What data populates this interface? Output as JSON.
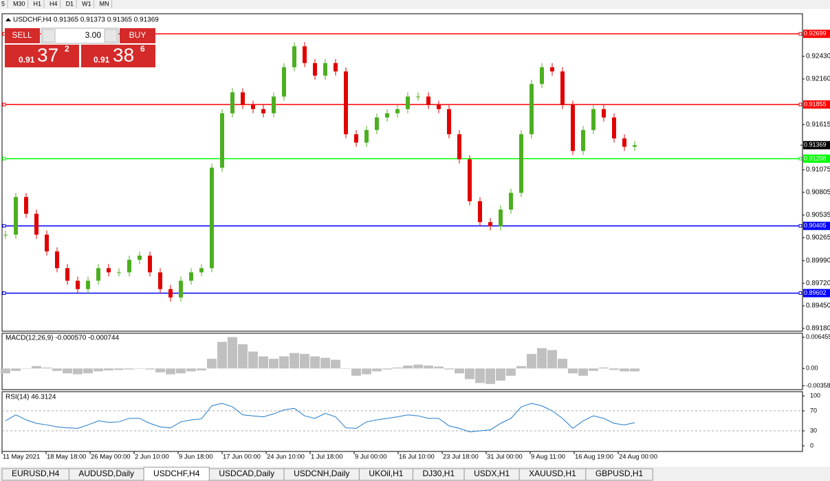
{
  "toolbar": {
    "timeframes": [
      "5",
      "M30",
      "H1",
      "H4",
      "D1",
      "W1",
      "MN"
    ]
  },
  "chart": {
    "header": "USDCHF,H4  0.91365 0.91373 0.91365 0.91369",
    "ylim": [
      0.89147,
      0.92939
    ],
    "yticks": [
      {
        "value": 0.9243,
        "label": "0.92430"
      },
      {
        "value": 0.9216,
        "label": "0.92160"
      },
      0.91615,
      0.91075,
      0.90805,
      0.90535,
      0.90265,
      {
        "value": 0.8999,
        "label": "0.89990"
      },
      {
        "value": 0.8972,
        "label": "0.89720"
      },
      {
        "value": 0.8945,
        "label": "0.89450"
      },
      {
        "value": 0.8918,
        "label": "0.89180"
      }
    ],
    "levels": [
      {
        "value": 0.92699,
        "color": "#ff0000"
      },
      {
        "value": 0.91855,
        "color": "#ff0000"
      },
      {
        "value": 0.91208,
        "color": "#00ff00"
      },
      {
        "value": 0.90405,
        "color": "#0000ff"
      },
      {
        "value": 0.89602,
        "color": "#0000ff"
      }
    ],
    "current_price": 0.91369,
    "up_color": "#4caf20",
    "down_color": "#e00000",
    "closes": [
      0.903,
      0.9075,
      0.9055,
      0.903,
      0.901,
      0.899,
      0.8975,
      0.8965,
      0.8975,
      0.899,
      0.8985,
      0.8985,
      0.9,
      0.9005,
      0.8985,
      0.8965,
      0.8955,
      0.8975,
      0.8985,
      0.899,
      0.911,
      0.9175,
      0.92,
      0.9185,
      0.918,
      0.9175,
      0.9195,
      0.923,
      0.9255,
      0.9235,
      0.922,
      0.9235,
      0.9225,
      0.915,
      0.914,
      0.9155,
      0.917,
      0.9175,
      0.918,
      0.9195,
      0.9195,
      0.9185,
      0.918,
      0.915,
      0.912,
      0.907,
      0.9045,
      0.904,
      0.906,
      0.908,
      0.915,
      0.921,
      0.923,
      0.9225,
      0.9185,
      0.913,
      0.9155,
      0.918,
      0.917,
      0.9145,
      0.9135,
      0.91369
    ],
    "time_labels": [
      "11 May 2021",
      "18 May 18:00",
      "26 May 00:00",
      "2 Jun 10:00",
      "9 Jun 18:00",
      "17 Jun 00:00",
      "24 Jun 10:00",
      "1 Jul 18:00",
      "9 Jul 00:00",
      "16 Jul 10:00",
      "23 Jul 18:00",
      "31 Jul 00:00",
      "9 Aug 11:00",
      "16 Aug 19:00",
      "24 Aug 00:00"
    ]
  },
  "trade_panel": {
    "sell": "SELL",
    "buy": "BUY",
    "volume": "3.00",
    "bid": {
      "prefix": "0.91",
      "big": "37",
      "small": "2"
    },
    "ask": {
      "prefix": "0.91",
      "big": "38",
      "small": "6"
    }
  },
  "macd": {
    "label": "MACD(12,26,9) -0.000570 -0.000744",
    "ylim": [
      -0.00437,
      0.00728
    ],
    "yticks": [
      0.006455,
      {
        "value": 0,
        "label": "0.00"
      },
      -0.003589
    ],
    "color": "#c0c0c0",
    "histogram": [
      -0.001,
      -0.0005,
      0.0,
      0.0005,
      0.0002,
      -0.0005,
      -0.001,
      -0.0012,
      -0.001,
      -0.0006,
      -0.0004,
      -0.0003,
      -0.0002,
      0.0,
      -0.0002,
      -0.0008,
      -0.0012,
      -0.001,
      -0.0006,
      -0.0004,
      0.002,
      0.0055,
      0.0065,
      0.005,
      0.0035,
      0.0025,
      0.002,
      0.0025,
      0.0032,
      0.003,
      0.0025,
      0.0022,
      0.0018,
      0.0,
      -0.0015,
      -0.0012,
      -0.0006,
      -0.0002,
      0.0002,
      0.0006,
      0.0008,
      0.0006,
      0.0004,
      -0.0002,
      -0.001,
      -0.0022,
      -0.003,
      -0.0032,
      -0.0025,
      -0.0015,
      0.0005,
      0.003,
      0.0042,
      0.0038,
      0.002,
      -0.001,
      -0.0015,
      -0.0005,
      0.0002,
      -0.0003,
      -0.0006,
      -0.0006
    ]
  },
  "rsi": {
    "label": "RSI(14) 46.3124",
    "ylim": [
      -11.1,
      108.3
    ],
    "yticks": [
      100,
      70,
      30,
      0
    ],
    "dashed_levels": [
      70,
      30
    ],
    "color": "#1e78c8",
    "values": [
      50,
      62,
      52,
      45,
      42,
      38,
      36,
      35,
      42,
      50,
      47,
      48,
      55,
      55,
      45,
      38,
      36,
      48,
      52,
      54,
      80,
      85,
      78,
      62,
      60,
      58,
      64,
      72,
      75,
      60,
      55,
      65,
      58,
      36,
      35,
      48,
      52,
      55,
      58,
      62,
      60,
      55,
      55,
      40,
      35,
      28,
      30,
      32,
      45,
      55,
      78,
      85,
      80,
      70,
      55,
      35,
      50,
      60,
      55,
      45,
      42,
      46.3
    ]
  },
  "tabs": [
    "EURUSD,H4",
    "AUDUSD,Daily",
    "USDCHF,H4",
    "USDCAD,Daily",
    "USDCNH,Daily",
    "UKOil,H1",
    "DJ30,H1",
    "USDX,H1",
    "XAUUSD,H1",
    "GBPUSD,H1"
  ],
  "active_tab": 2
}
